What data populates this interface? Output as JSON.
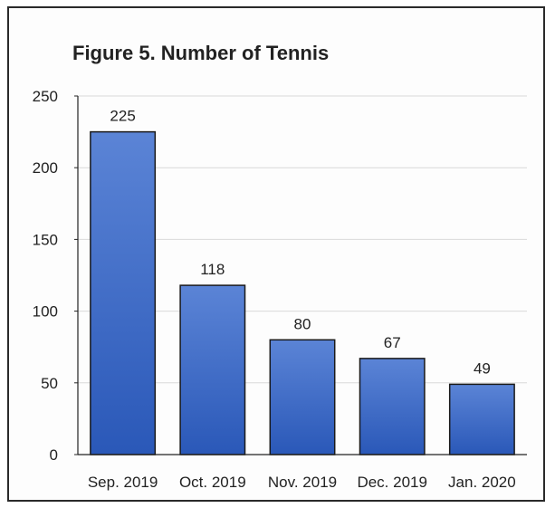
{
  "chart_data": {
    "type": "bar",
    "title": "Figure 5. Number of Tennis",
    "xlabel": "",
    "ylabel": "",
    "categories": [
      "Sep. 2019",
      "Oct. 2019",
      "Nov. 2019",
      "Dec. 2019",
      "Jan. 2020"
    ],
    "values": [
      225,
      118,
      80,
      67,
      49
    ],
    "data_labels": [
      "225",
      "118",
      "80",
      "67",
      "49"
    ],
    "ylim": [
      0,
      250
    ],
    "yticks": [
      0,
      50,
      100,
      150,
      200,
      250
    ],
    "ytick_labels": [
      "0",
      "50",
      "100",
      "150",
      "200",
      "250"
    ],
    "grid": true,
    "legend": "none",
    "bar_color_top": "#5b84d6",
    "bar_color_bottom": "#2a58b8",
    "bar_border_color": "#1a1a1a",
    "axis_color": "#222222",
    "grid_color": "#d9d9d9"
  }
}
